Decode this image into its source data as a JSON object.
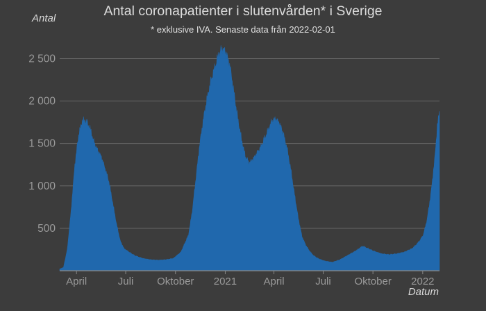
{
  "chart_data": {
    "type": "area",
    "title": "Antal coronapatienter i slutenvården* i Sverige",
    "subtitle": "* exklusive IVA. Senaste data från 2022-02-01",
    "ylabel": "Antal",
    "xlabel": "Datum",
    "ylim": [
      0,
      2700
    ],
    "yticks": [
      500,
      1000,
      1500,
      2000,
      2500
    ],
    "ytick_labels": [
      "500",
      "1 000",
      "1 500",
      "2 000",
      "2 500"
    ],
    "xlim": [
      "2020-03-01",
      "2022-02-01"
    ],
    "xticks": [
      "2020-04-01",
      "2020-07-01",
      "2020-10-01",
      "2021-01-01",
      "2021-04-01",
      "2021-07-01",
      "2021-10-01",
      "2022-01-01"
    ],
    "xtick_labels": [
      "April",
      "Juli",
      "Oktober",
      "2021",
      "April",
      "Juli",
      "Oktober",
      "2022"
    ],
    "grid": true,
    "colors": {
      "area": "#2068ad",
      "grid": "#6a6a6a",
      "axis": "#8a8a8a",
      "background": "#3c3c3c"
    },
    "series": [
      {
        "x": [
          "2020-03-01",
          "2020-03-08",
          "2020-03-15",
          "2020-03-22",
          "2020-03-29",
          "2020-04-05",
          "2020-04-12",
          "2020-04-19",
          "2020-04-26",
          "2020-05-03",
          "2020-05-10",
          "2020-05-17",
          "2020-05-24",
          "2020-05-31",
          "2020-06-07",
          "2020-06-14",
          "2020-06-21",
          "2020-06-28",
          "2020-07-05",
          "2020-07-12",
          "2020-07-19",
          "2020-07-26",
          "2020-08-02",
          "2020-08-16",
          "2020-08-30",
          "2020-09-13",
          "2020-09-27",
          "2020-10-11",
          "2020-10-25",
          "2020-11-01",
          "2020-11-08",
          "2020-11-15",
          "2020-11-22",
          "2020-11-29",
          "2020-12-06",
          "2020-12-13",
          "2020-12-20",
          "2020-12-27",
          "2021-01-03",
          "2021-01-10",
          "2021-01-17",
          "2021-01-24",
          "2021-01-31",
          "2021-02-07",
          "2021-02-14",
          "2021-02-21",
          "2021-02-28",
          "2021-03-07",
          "2021-03-14",
          "2021-03-21",
          "2021-03-28",
          "2021-04-04",
          "2021-04-11",
          "2021-04-18",
          "2021-04-25",
          "2021-05-02",
          "2021-05-09",
          "2021-05-16",
          "2021-05-23",
          "2021-05-30",
          "2021-06-06",
          "2021-06-13",
          "2021-06-20",
          "2021-06-27",
          "2021-07-04",
          "2021-07-18",
          "2021-08-01",
          "2021-08-15",
          "2021-08-29",
          "2021-09-05",
          "2021-09-12",
          "2021-09-19",
          "2021-10-03",
          "2021-10-17",
          "2021-10-31",
          "2021-11-14",
          "2021-11-28",
          "2021-12-05",
          "2021-12-12",
          "2021-12-19",
          "2021-12-26",
          "2022-01-02",
          "2022-01-09",
          "2022-01-16",
          "2022-01-23",
          "2022-01-28",
          "2022-02-01"
        ],
        "y": [
          20,
          40,
          250,
          700,
          1250,
          1600,
          1770,
          1760,
          1680,
          1520,
          1420,
          1340,
          1200,
          1050,
          800,
          550,
          350,
          260,
          230,
          200,
          175,
          160,
          145,
          130,
          125,
          130,
          145,
          220,
          420,
          700,
          1100,
          1500,
          1800,
          2050,
          2250,
          2400,
          2550,
          2620,
          2560,
          2400,
          2100,
          1800,
          1550,
          1350,
          1270,
          1310,
          1380,
          1450,
          1550,
          1650,
          1760,
          1790,
          1740,
          1620,
          1450,
          1200,
          900,
          620,
          400,
          300,
          230,
          180,
          150,
          130,
          115,
          100,
          130,
          180,
          230,
          260,
          290,
          270,
          230,
          200,
          190,
          200,
          220,
          240,
          260,
          300,
          350,
          420,
          600,
          900,
          1300,
          1700,
          1880
        ]
      }
    ]
  }
}
